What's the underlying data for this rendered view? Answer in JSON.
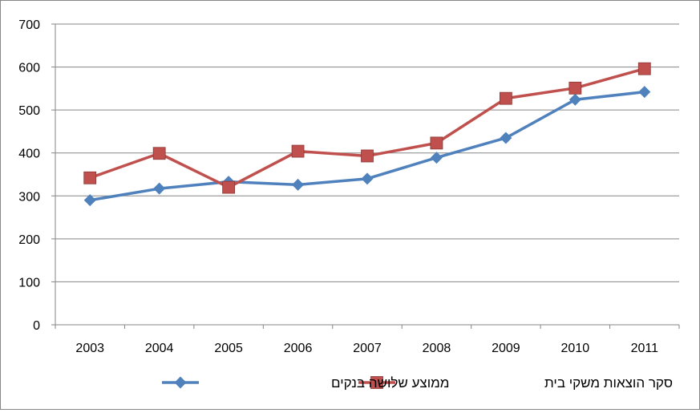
{
  "chart_data": {
    "type": "line",
    "title": "",
    "xlabel": "",
    "ylabel": "",
    "ylim": [
      0,
      700
    ],
    "yticks": [
      0,
      100,
      200,
      300,
      400,
      500,
      600,
      700
    ],
    "grid": true,
    "legend_position": "bottom",
    "categories": [
      "2003",
      "2004",
      "2005",
      "2006",
      "2007",
      "2008",
      "2009",
      "2010",
      "2011"
    ],
    "series": [
      {
        "name": "ממוצע שלושה בנקים",
        "color": "#4F81BD",
        "marker": "diamond",
        "values": [
          290,
          317,
          333,
          326,
          340,
          389,
          435,
          524,
          542
        ]
      },
      {
        "name": "סקר הוצאות משקי בית",
        "color": "#C0504D",
        "marker": "square",
        "values": [
          342,
          399,
          320,
          404,
          393,
          423,
          527,
          551,
          596
        ]
      }
    ]
  }
}
